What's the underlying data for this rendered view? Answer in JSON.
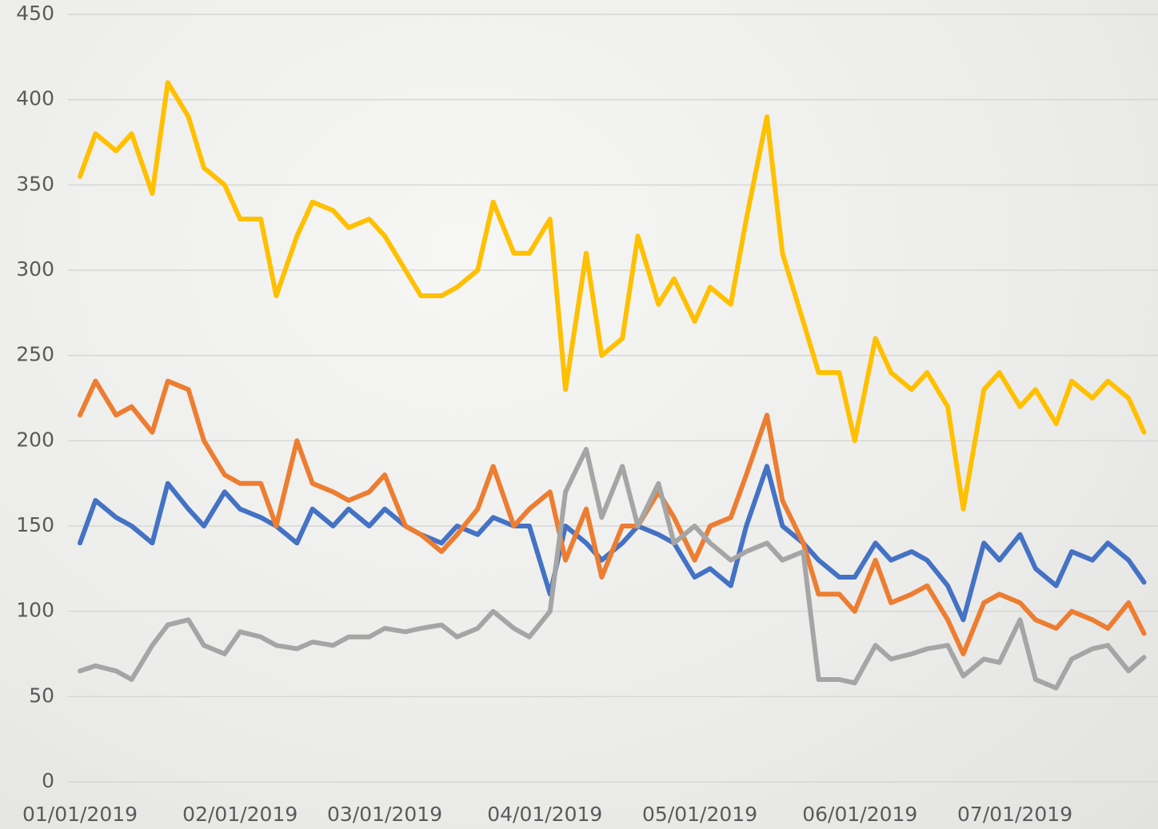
{
  "chart_data": {
    "type": "line",
    "x": [
      "2019-01-01",
      "2019-01-04",
      "2019-01-08",
      "2019-01-11",
      "2019-01-15",
      "2019-01-18",
      "2019-01-22",
      "2019-01-25",
      "2019-01-29",
      "2019-02-01",
      "2019-02-05",
      "2019-02-08",
      "2019-02-12",
      "2019-02-15",
      "2019-02-19",
      "2019-02-22",
      "2019-02-26",
      "2019-03-01",
      "2019-03-05",
      "2019-03-08",
      "2019-03-12",
      "2019-03-15",
      "2019-03-19",
      "2019-03-22",
      "2019-03-26",
      "2019-03-29",
      "2019-04-02",
      "2019-04-05",
      "2019-04-09",
      "2019-04-12",
      "2019-04-16",
      "2019-04-19",
      "2019-04-23",
      "2019-04-26",
      "2019-04-30",
      "2019-05-03",
      "2019-05-07",
      "2019-05-10",
      "2019-05-14",
      "2019-05-17",
      "2019-05-21",
      "2019-05-24",
      "2019-05-28",
      "2019-05-31",
      "2019-06-04",
      "2019-06-07",
      "2019-06-11",
      "2019-06-14",
      "2019-06-18",
      "2019-06-21",
      "2019-06-25",
      "2019-06-28",
      "2019-07-02",
      "2019-07-05",
      "2019-07-09",
      "2019-07-12",
      "2019-07-16",
      "2019-07-19",
      "2019-07-23",
      "2019-07-26"
    ],
    "series": [
      {
        "color": "#4472c4",
        "values": [
          140,
          165,
          155,
          150,
          140,
          175,
          160,
          150,
          170,
          160,
          155,
          150,
          140,
          160,
          150,
          160,
          150,
          160,
          150,
          145,
          140,
          150,
          145,
          155,
          150,
          150,
          110,
          150,
          140,
          130,
          140,
          150,
          145,
          140,
          120,
          125,
          115,
          150,
          185,
          150,
          140,
          130,
          120,
          120,
          140,
          130,
          135,
          130,
          115,
          95,
          140,
          130,
          145,
          125,
          115,
          135,
          130,
          140,
          130,
          117
        ]
      },
      {
        "color": "#ed7d31",
        "values": [
          215,
          235,
          215,
          220,
          205,
          235,
          230,
          200,
          180,
          175,
          175,
          150,
          200,
          175,
          170,
          165,
          170,
          180,
          150,
          145,
          135,
          145,
          160,
          185,
          150,
          160,
          170,
          130,
          160,
          120,
          150,
          150,
          170,
          155,
          130,
          150,
          155,
          180,
          215,
          165,
          140,
          110,
          110,
          100,
          130,
          105,
          110,
          115,
          95,
          75,
          105,
          110,
          105,
          95,
          90,
          100,
          95,
          90,
          105,
          87
        ]
      },
      {
        "color": "#a5a5a5",
        "values": [
          65,
          68,
          65,
          60,
          80,
          92,
          95,
          80,
          75,
          88,
          85,
          80,
          78,
          82,
          80,
          85,
          85,
          90,
          88,
          90,
          92,
          85,
          90,
          100,
          90,
          85,
          100,
          170,
          195,
          155,
          185,
          150,
          175,
          140,
          150,
          140,
          130,
          135,
          140,
          130,
          135,
          60,
          60,
          58,
          80,
          72,
          75,
          78,
          80,
          62,
          72,
          70,
          95,
          60,
          55,
          72,
          78,
          80,
          65,
          73
        ]
      },
      {
        "color": "#ffc000",
        "values": [
          355,
          380,
          370,
          380,
          345,
          410,
          390,
          360,
          350,
          330,
          330,
          285,
          320,
          340,
          335,
          325,
          330,
          320,
          300,
          285,
          285,
          290,
          300,
          340,
          310,
          310,
          330,
          230,
          310,
          250,
          260,
          320,
          280,
          295,
          270,
          290,
          280,
          330,
          390,
          310,
          270,
          240,
          240,
          200,
          260,
          240,
          230,
          240,
          220,
          160,
          230,
          240,
          220,
          230,
          210,
          235,
          225,
          235,
          225,
          205
        ]
      }
    ],
    "xlim": [
      "2019-01-01",
      "2019-07-27"
    ],
    "xticks": [
      {
        "value": "2019-01-01",
        "label": "01/01/2019"
      },
      {
        "value": "2019-02-01",
        "label": "02/01/2019"
      },
      {
        "value": "2019-03-01",
        "label": "03/01/2019"
      },
      {
        "value": "2019-04-01",
        "label": "04/01/2019"
      },
      {
        "value": "2019-05-01",
        "label": "05/01/2019"
      },
      {
        "value": "2019-06-01",
        "label": "06/01/2019"
      },
      {
        "value": "2019-07-01",
        "label": "07/01/2019"
      }
    ],
    "ylim": [
      0,
      450
    ],
    "yticks": [
      0,
      50,
      100,
      150,
      200,
      250,
      300,
      350,
      400,
      450
    ],
    "grid": true
  }
}
